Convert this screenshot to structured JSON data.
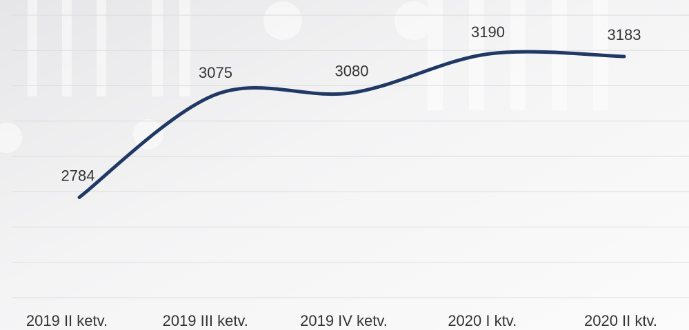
{
  "chart_data": {
    "type": "line",
    "categories": [
      "2019 II ketv.",
      "2019 III ketv.",
      "2019 IV ketv.",
      "2020 I ktv.",
      "2020 II ktv."
    ],
    "series": [
      {
        "color": "#1f3864",
        "values": [
          2784,
          3075,
          3080,
          3190,
          3183
        ]
      }
    ],
    "ylim": [
      2500,
      3300
    ],
    "yticks": [
      2500,
      2600,
      2700,
      2800,
      2900,
      3000,
      3100,
      3200,
      3300
    ],
    "grid": true
  }
}
